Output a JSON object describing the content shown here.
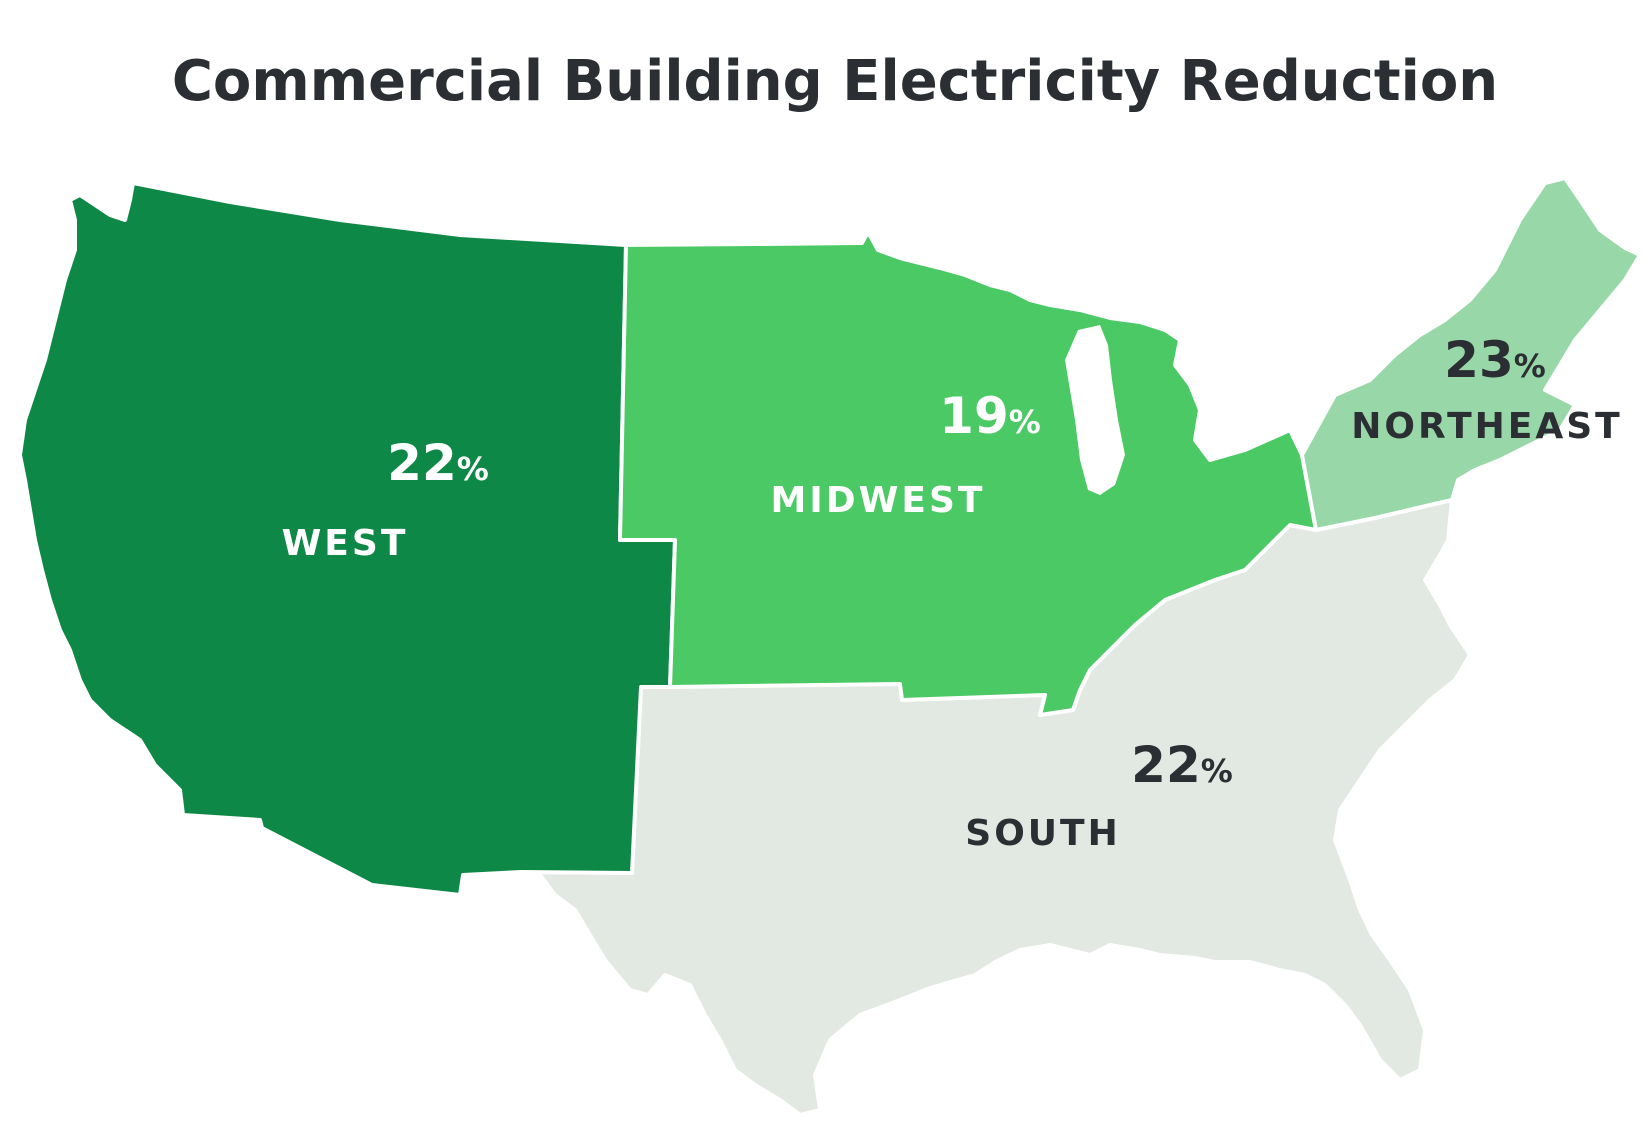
{
  "title": "Commercial Building Electricity Reduction",
  "regions": [
    {
      "id": "west",
      "name": "WEST",
      "value": "22",
      "unit": "%",
      "fill": "#0e8846",
      "text_color": "#ffffff"
    },
    {
      "id": "midwest",
      "name": "MIDWEST",
      "value": "19",
      "unit": "%",
      "fill": "#4bc964",
      "text_color": "#ffffff"
    },
    {
      "id": "northeast",
      "name": "NORTHEAST",
      "value": "23",
      "unit": "%",
      "fill": "#98d8a8",
      "text_color": "#2b2e33"
    },
    {
      "id": "south",
      "name": "SOUTH",
      "value": "22",
      "unit": "%",
      "fill": "#e2e8e2",
      "text_color": "#2b2e33"
    }
  ]
}
